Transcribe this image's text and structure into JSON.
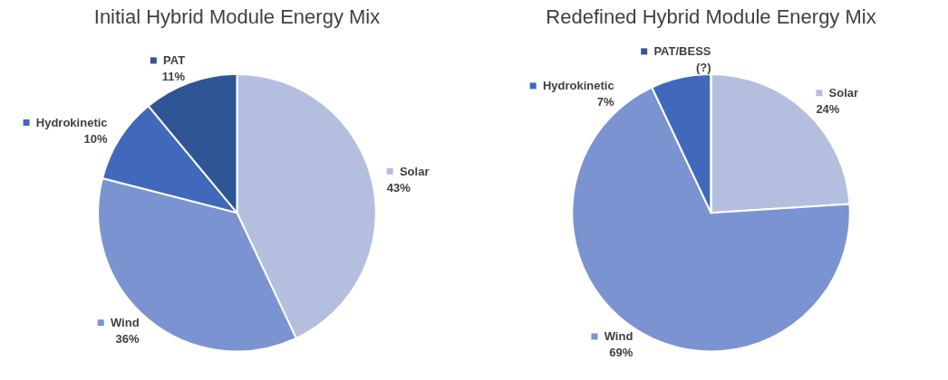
{
  "chart_data": [
    {
      "type": "pie",
      "title": "Initial Hybrid Module Energy Mix",
      "categories": [
        "Solar",
        "Wind",
        "Hydrokinetic",
        "PAT"
      ],
      "values": [
        43,
        36,
        10,
        11
      ],
      "colors": [
        "#b4bfe0",
        "#7b93d0",
        "#4169bb",
        "#2f5597"
      ],
      "value_labels": [
        "43%",
        "36%",
        "10%",
        "11%"
      ],
      "legend": "top left"
    },
    {
      "type": "pie",
      "title": "Redefined Hybrid Module Energy Mix",
      "categories": [
        "Solar",
        "Wind",
        "Hydrokinetic",
        "PAT/BESS"
      ],
      "values": [
        24,
        69,
        7,
        0
      ],
      "colors": [
        "#b4bfe0",
        "#7b93d0",
        "#4169bb",
        "#2f5597"
      ],
      "value_labels": [
        "24%",
        "69%",
        "7%",
        "(?)"
      ],
      "legend": "top"
    }
  ]
}
